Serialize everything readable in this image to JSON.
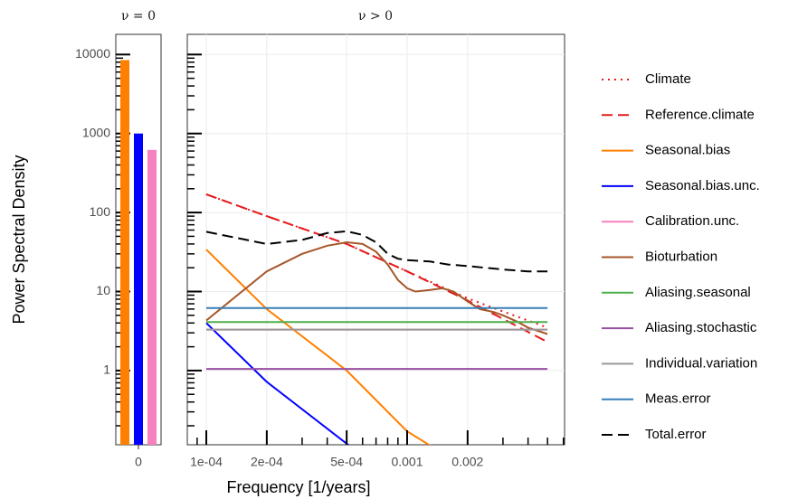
{
  "chart_data": [
    {
      "type": "bar",
      "title": "ν = 0",
      "ylabel": "Power Spectral Density",
      "categories": [
        "0"
      ],
      "series": [
        {
          "color": "#ff7f00",
          "values": [
            8500
          ]
        },
        {
          "color": "#0000ff",
          "values": [
            1000
          ]
        },
        {
          "color": "#f781bf",
          "values": [
            620
          ]
        }
      ],
      "ylim": [
        0.115,
        18000
      ],
      "yticks": [
        1,
        10,
        100,
        1000,
        10000
      ],
      "log_y": true,
      "minor_ticks": true
    },
    {
      "type": "line",
      "title": "ν > 0",
      "xlabel": "Frequency [1/years]",
      "xlim": [
        8.04e-05,
        0.00608
      ],
      "ylim": [
        0.115,
        18000
      ],
      "log_x": true,
      "log_y": true,
      "grid": true,
      "minor_ticks": true,
      "xticks": [
        {
          "value": 0.0001,
          "label": "1e-04"
        },
        {
          "value": 0.0002,
          "label": "2e-04"
        },
        {
          "value": 0.0005,
          "label": "5e-04"
        },
        0.001,
        0.002
      ],
      "yticks": [
        1,
        10,
        100,
        1000,
        10000
      ],
      "legend": "right",
      "series": [
        {
          "name": "Climate",
          "color": "#e41a1c",
          "dash": "dotted",
          "x": [
            0.0001,
            0.0002,
            0.0005,
            0.001,
            0.002,
            0.003,
            0.005
          ],
          "values": [
            170,
            90,
            40,
            18,
            8.2,
            5.6,
            3.5
          ]
        },
        {
          "name": "Reference.climate",
          "color": "#e41a1c",
          "dash": "dashed",
          "x": [
            0.0001,
            0.0002,
            0.0005,
            0.001,
            0.002,
            0.005
          ],
          "values": [
            170,
            90,
            40,
            18,
            7.7,
            2.3
          ]
        },
        {
          "name": "Seasonal.bias",
          "color": "#ff7f00",
          "dash": "solid",
          "x": [
            0.0001,
            0.0002,
            0.0005,
            0.001,
            0.0015
          ],
          "values": [
            34,
            6,
            1,
            0.17,
            0.09
          ]
        },
        {
          "name": "Seasonal.bias.unc.",
          "color": "#0000ff",
          "dash": "solid",
          "x": [
            0.0001,
            0.0002,
            0.00052
          ],
          "values": [
            4,
            0.72,
            0.11
          ]
        },
        {
          "name": "Calibration.unc.",
          "color": "#f781bf",
          "dash": "solid",
          "x": [
            0.0001,
            0.005
          ],
          "values": [
            3.3,
            3.3
          ]
        },
        {
          "name": "Bioturbation",
          "color": "#a65628",
          "dash": "solid",
          "x": [
            0.0001,
            0.0002,
            0.0003,
            0.0004,
            0.0005,
            0.0006,
            0.0007,
            0.0008,
            0.0009,
            0.001,
            0.0011,
            0.0013,
            0.0015,
            0.0017,
            0.002,
            0.0023,
            0.0027,
            0.003,
            0.0035,
            0.004,
            0.005
          ],
          "values": [
            4.3,
            18,
            30,
            38,
            42,
            40,
            32,
            22,
            14,
            11,
            10,
            10.5,
            11,
            10,
            7.5,
            6,
            5.5,
            5,
            4.2,
            3.5,
            2.9
          ]
        },
        {
          "name": "Aliasing.seasonal",
          "color": "#4daf4a",
          "dash": "solid",
          "x": [
            0.0001,
            0.005
          ],
          "values": [
            4.1,
            4.1
          ]
        },
        {
          "name": "Aliasing.stochastic",
          "color": "#984ea3",
          "dash": "solid",
          "x": [
            0.0001,
            0.005
          ],
          "values": [
            1.05,
            1.05
          ]
        },
        {
          "name": "Individual.variation",
          "color": "#999999",
          "dash": "solid",
          "x": [
            0.0001,
            0.005
          ],
          "values": [
            3.3,
            3.3
          ]
        },
        {
          "name": "Meas.error",
          "color": "#377eb8",
          "dash": "solid",
          "x": [
            0.0001,
            0.005
          ],
          "values": [
            6.2,
            6.2
          ]
        },
        {
          "name": "Total.error",
          "color": "#000000",
          "dash": "dashed",
          "x": [
            0.0001,
            0.0002,
            0.0003,
            0.0004,
            0.0005,
            0.0006,
            0.0007,
            0.0008,
            0.0009,
            0.001,
            0.0013,
            0.0016,
            0.002,
            0.003,
            0.004,
            0.005
          ],
          "values": [
            57,
            40,
            45,
            55,
            58,
            52,
            42,
            30,
            26,
            25,
            24,
            22,
            21,
            19,
            18,
            18
          ]
        }
      ]
    }
  ]
}
